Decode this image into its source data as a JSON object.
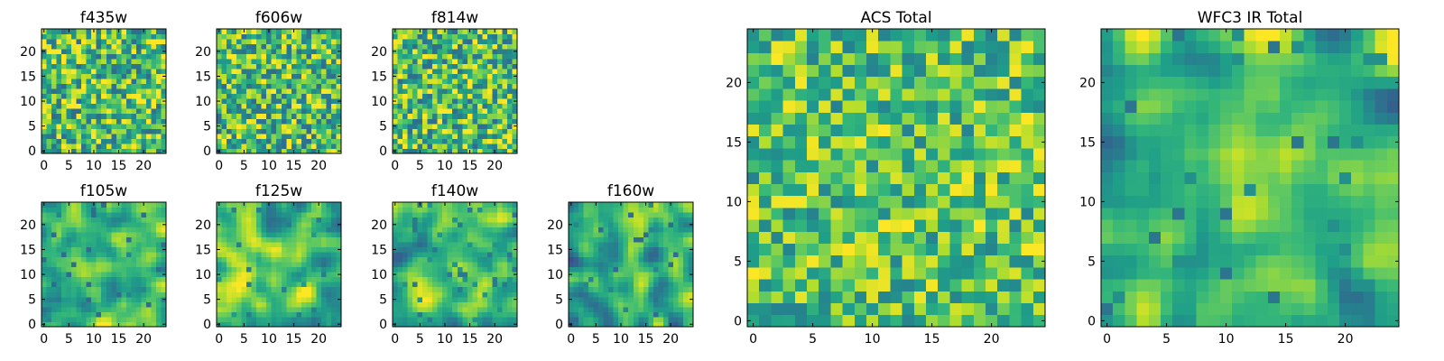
{
  "figure_title": "",
  "chart_data": [
    {
      "id": "f435w",
      "type": "heatmap",
      "title": "f435w",
      "grid_size": 25,
      "xlim": [
        -0.5,
        24.5
      ],
      "ylim": [
        -0.5,
        24.5
      ],
      "xticks": [
        0,
        5,
        10,
        15,
        20
      ],
      "yticks": [
        0,
        5,
        10,
        15,
        20
      ],
      "xtick_labels": [
        "0",
        "5",
        "10",
        "15",
        "20"
      ],
      "ytick_labels": [
        "0",
        "5",
        "10",
        "15",
        "20"
      ],
      "colormap": "viridis",
      "value_range": [
        0,
        1
      ],
      "pattern": "uncorrelated pixel noise",
      "mean_level": 0.7,
      "spread": 0.35,
      "seed": 11
    },
    {
      "id": "f606w",
      "type": "heatmap",
      "title": "f606w",
      "grid_size": 25,
      "xlim": [
        -0.5,
        24.5
      ],
      "ylim": [
        -0.5,
        24.5
      ],
      "xticks": [
        0,
        5,
        10,
        15,
        20
      ],
      "yticks": [
        0,
        5,
        10,
        15,
        20
      ],
      "xtick_labels": [
        "0",
        "5",
        "10",
        "15",
        "20"
      ],
      "ytick_labels": [
        "0",
        "5",
        "10",
        "15",
        "20"
      ],
      "colormap": "viridis",
      "value_range": [
        0,
        1
      ],
      "pattern": "uncorrelated pixel noise",
      "mean_level": 0.7,
      "spread": 0.35,
      "seed": 23
    },
    {
      "id": "f814w",
      "type": "heatmap",
      "title": "f814w",
      "grid_size": 25,
      "xlim": [
        -0.5,
        24.5
      ],
      "ylim": [
        -0.5,
        24.5
      ],
      "xticks": [
        0,
        5,
        10,
        15,
        20
      ],
      "yticks": [
        0,
        5,
        10,
        15,
        20
      ],
      "xtick_labels": [
        "0",
        "5",
        "10",
        "15",
        "20"
      ],
      "ytick_labels": [
        "0",
        "5",
        "10",
        "15",
        "20"
      ],
      "colormap": "viridis",
      "value_range": [
        0,
        1
      ],
      "pattern": "uncorrelated pixel noise",
      "mean_level": 0.7,
      "spread": 0.35,
      "seed": 37
    },
    {
      "id": "f105w",
      "type": "heatmap",
      "title": "f105w",
      "grid_size": 25,
      "xlim": [
        -0.5,
        24.5
      ],
      "ylim": [
        -0.5,
        24.5
      ],
      "xticks": [
        0,
        5,
        10,
        15,
        20
      ],
      "yticks": [
        0,
        5,
        10,
        15,
        20
      ],
      "xtick_labels": [
        "0",
        "5",
        "10",
        "15",
        "20"
      ],
      "ytick_labels": [
        "0",
        "5",
        "10",
        "15",
        "20"
      ],
      "colormap": "viridis",
      "value_range": [
        0,
        1
      ],
      "pattern": "spatially correlated noise, brighter near center",
      "mean_level": 0.66,
      "spread": 0.32,
      "seed": 41
    },
    {
      "id": "f125w",
      "type": "heatmap",
      "title": "f125w",
      "grid_size": 25,
      "xlim": [
        -0.5,
        24.5
      ],
      "ylim": [
        -0.5,
        24.5
      ],
      "xticks": [
        0,
        5,
        10,
        15,
        20
      ],
      "yticks": [
        0,
        5,
        10,
        15,
        20
      ],
      "xtick_labels": [
        "0",
        "5",
        "10",
        "15",
        "20"
      ],
      "ytick_labels": [
        "0",
        "5",
        "10",
        "15",
        "20"
      ],
      "colormap": "viridis",
      "value_range": [
        0,
        1
      ],
      "pattern": "spatially correlated noise",
      "mean_level": 0.72,
      "spread": 0.3,
      "seed": 53
    },
    {
      "id": "f140w",
      "type": "heatmap",
      "title": "f140w",
      "grid_size": 25,
      "xlim": [
        -0.5,
        24.5
      ],
      "ylim": [
        -0.5,
        24.5
      ],
      "xticks": [
        0,
        5,
        10,
        15,
        20
      ],
      "yticks": [
        0,
        5,
        10,
        15,
        20
      ],
      "xtick_labels": [
        "0",
        "5",
        "10",
        "15",
        "20"
      ],
      "ytick_labels": [
        "0",
        "5",
        "10",
        "15",
        "20"
      ],
      "colormap": "viridis",
      "value_range": [
        0,
        1
      ],
      "pattern": "spatially correlated noise",
      "mean_level": 0.7,
      "spread": 0.3,
      "seed": 67
    },
    {
      "id": "f160w",
      "type": "heatmap",
      "title": "f160w",
      "grid_size": 25,
      "xlim": [
        -0.5,
        24.5
      ],
      "ylim": [
        -0.5,
        24.5
      ],
      "xticks": [
        0,
        5,
        10,
        15,
        20
      ],
      "yticks": [
        0,
        5,
        10,
        15,
        20
      ],
      "xtick_labels": [
        "0",
        "5",
        "10",
        "15",
        "20"
      ],
      "ytick_labels": [
        "0",
        "5",
        "10",
        "15",
        "20"
      ],
      "colormap": "viridis",
      "value_range": [
        0,
        1
      ],
      "pattern": "spatially correlated noise, bright vertical band near center",
      "mean_level": 0.66,
      "spread": 0.32,
      "seed": 79
    },
    {
      "id": "acs_total",
      "type": "heatmap",
      "title": "ACS Total",
      "grid_size": 25,
      "xlim": [
        -0.5,
        24.5
      ],
      "ylim": [
        -0.5,
        24.5
      ],
      "xticks": [
        0,
        5,
        10,
        15,
        20
      ],
      "yticks": [
        0,
        5,
        10,
        15,
        20
      ],
      "xtick_labels": [
        "0",
        "5",
        "10",
        "15",
        "20"
      ],
      "ytick_labels": [
        "0",
        "5",
        "10",
        "15",
        "20"
      ],
      "colormap": "viridis",
      "value_range": [
        0,
        1
      ],
      "pattern": "uncorrelated pixel noise, mostly green-yellow",
      "mean_level": 0.72,
      "spread": 0.28,
      "seed": 97
    },
    {
      "id": "wfc3_ir_total",
      "type": "heatmap",
      "title": "WFC3 IR Total",
      "grid_size": 25,
      "xlim": [
        -0.5,
        24.5
      ],
      "ylim": [
        -0.5,
        24.5
      ],
      "xticks": [
        0,
        5,
        10,
        15,
        20
      ],
      "yticks": [
        0,
        5,
        10,
        15,
        20
      ],
      "xtick_labels": [
        "0",
        "5",
        "10",
        "15",
        "20"
      ],
      "ytick_labels": [
        "0",
        "5",
        "10",
        "15",
        "20"
      ],
      "colormap": "viridis",
      "value_range": [
        0,
        1
      ],
      "pattern": "spatially correlated noise, bright vertical band near center",
      "mean_level": 0.68,
      "spread": 0.3,
      "seed": 113
    }
  ]
}
